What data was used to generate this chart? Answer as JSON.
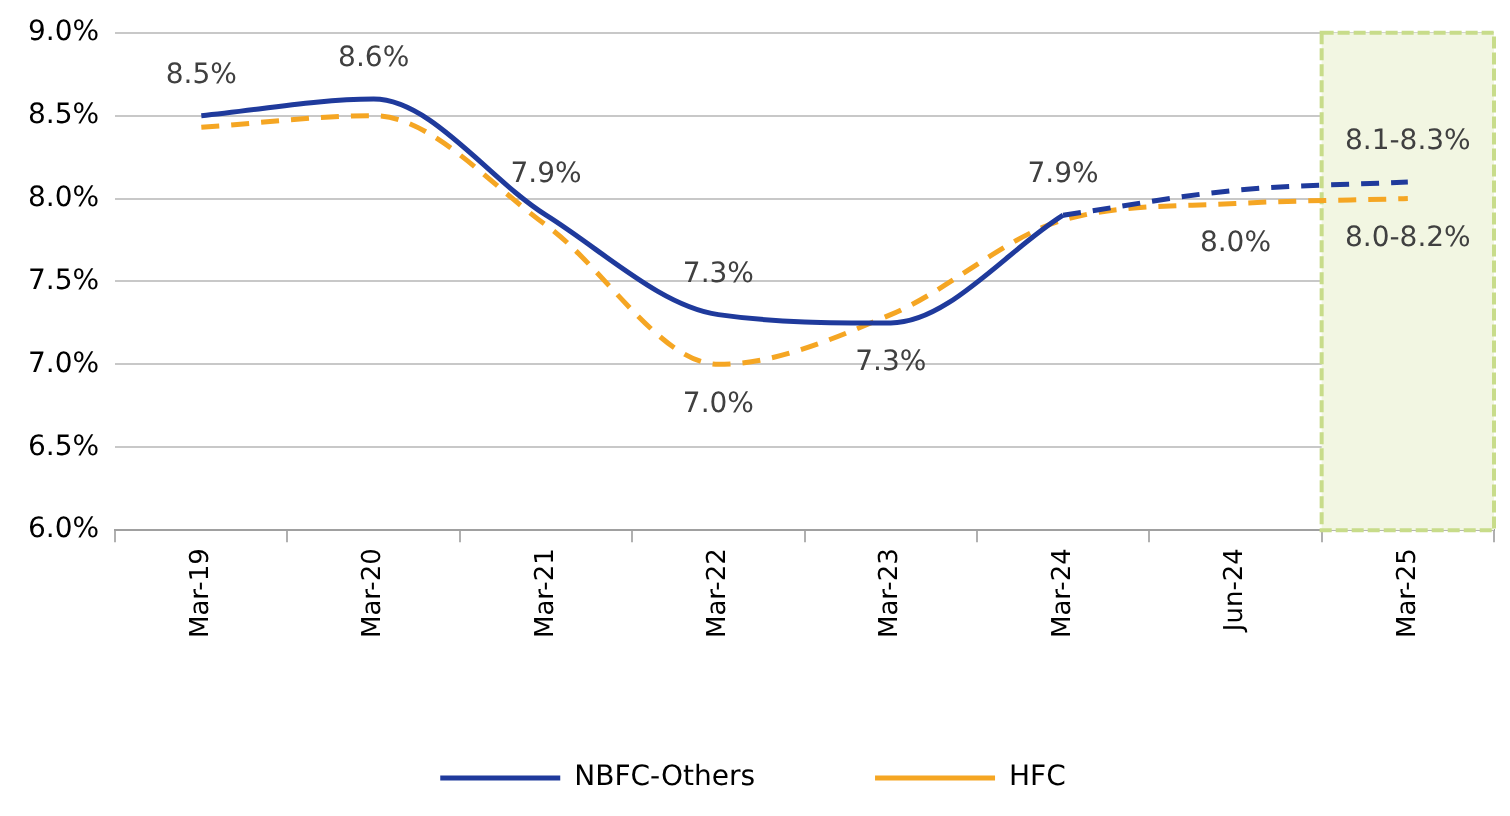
{
  "chart_data": {
    "type": "line",
    "categories": [
      "Mar-19",
      "Mar-20",
      "Mar-21",
      "Mar-22",
      "Mar-23",
      "Mar-24",
      "Jun-24",
      "Mar-25"
    ],
    "series": [
      {
        "name": "NBFC-Others",
        "color": "#1f3a9c",
        "line_style": "solid",
        "values": [
          8.5,
          8.6,
          7.9,
          7.3,
          7.25,
          7.9,
          null,
          null
        ]
      },
      {
        "color": "#1f3a9c",
        "line_style": "dashed",
        "values": [
          null,
          null,
          null,
          null,
          null,
          7.9,
          8.05,
          8.1
        ]
      },
      {
        "name": "HFC",
        "color": "#f5a623",
        "line_style": "dashed",
        "values": [
          8.43,
          8.5,
          7.84,
          7.0,
          7.3,
          7.87,
          7.97,
          8.0
        ]
      }
    ],
    "ylim": [
      6.0,
      9.0
    ],
    "yticks": [
      {
        "value": 6.0,
        "label": "6.0%"
      },
      {
        "value": 6.5,
        "label": "6.5%"
      },
      {
        "value": 7.0,
        "label": "7.0%"
      },
      {
        "value": 7.5,
        "label": "7.5%"
      },
      {
        "value": 8.0,
        "label": "8.0%"
      },
      {
        "value": 8.5,
        "label": "8.5%"
      },
      {
        "value": 9.0,
        "label": "9.0%"
      }
    ],
    "grid": "y",
    "legend": "bottom",
    "marker": "none",
    "bands": [
      {
        "axis": "x",
        "from": "Mar-25",
        "to": "Mar-25",
        "color": "#f2f6e2"
      }
    ],
    "annotations": [
      {
        "text": "8.5%",
        "x": "Mar-19",
        "y": 8.5
      },
      {
        "text": "8.6%",
        "x": "Mar-20",
        "y": 8.6
      },
      {
        "text": "7.9%",
        "x": "Mar-21",
        "y": 7.9
      },
      {
        "text": "7.3%",
        "x": "Mar-22",
        "y": 7.3
      },
      {
        "text": "7.0%",
        "x": "Mar-22",
        "y": 7.0
      },
      {
        "text": "7.3%",
        "x": "Mar-23",
        "y": 7.25
      },
      {
        "text": "7.9%",
        "x": "Mar-24",
        "y": 7.9
      },
      {
        "text": "8.0%",
        "x": "Jun-24",
        "y": 7.97
      },
      {
        "text": "8.1-8.3%",
        "x": "Mar-25",
        "y": 8.1
      },
      {
        "text": "8.0-8.2%",
        "x": "Mar-25",
        "y": 8.0
      }
    ]
  }
}
